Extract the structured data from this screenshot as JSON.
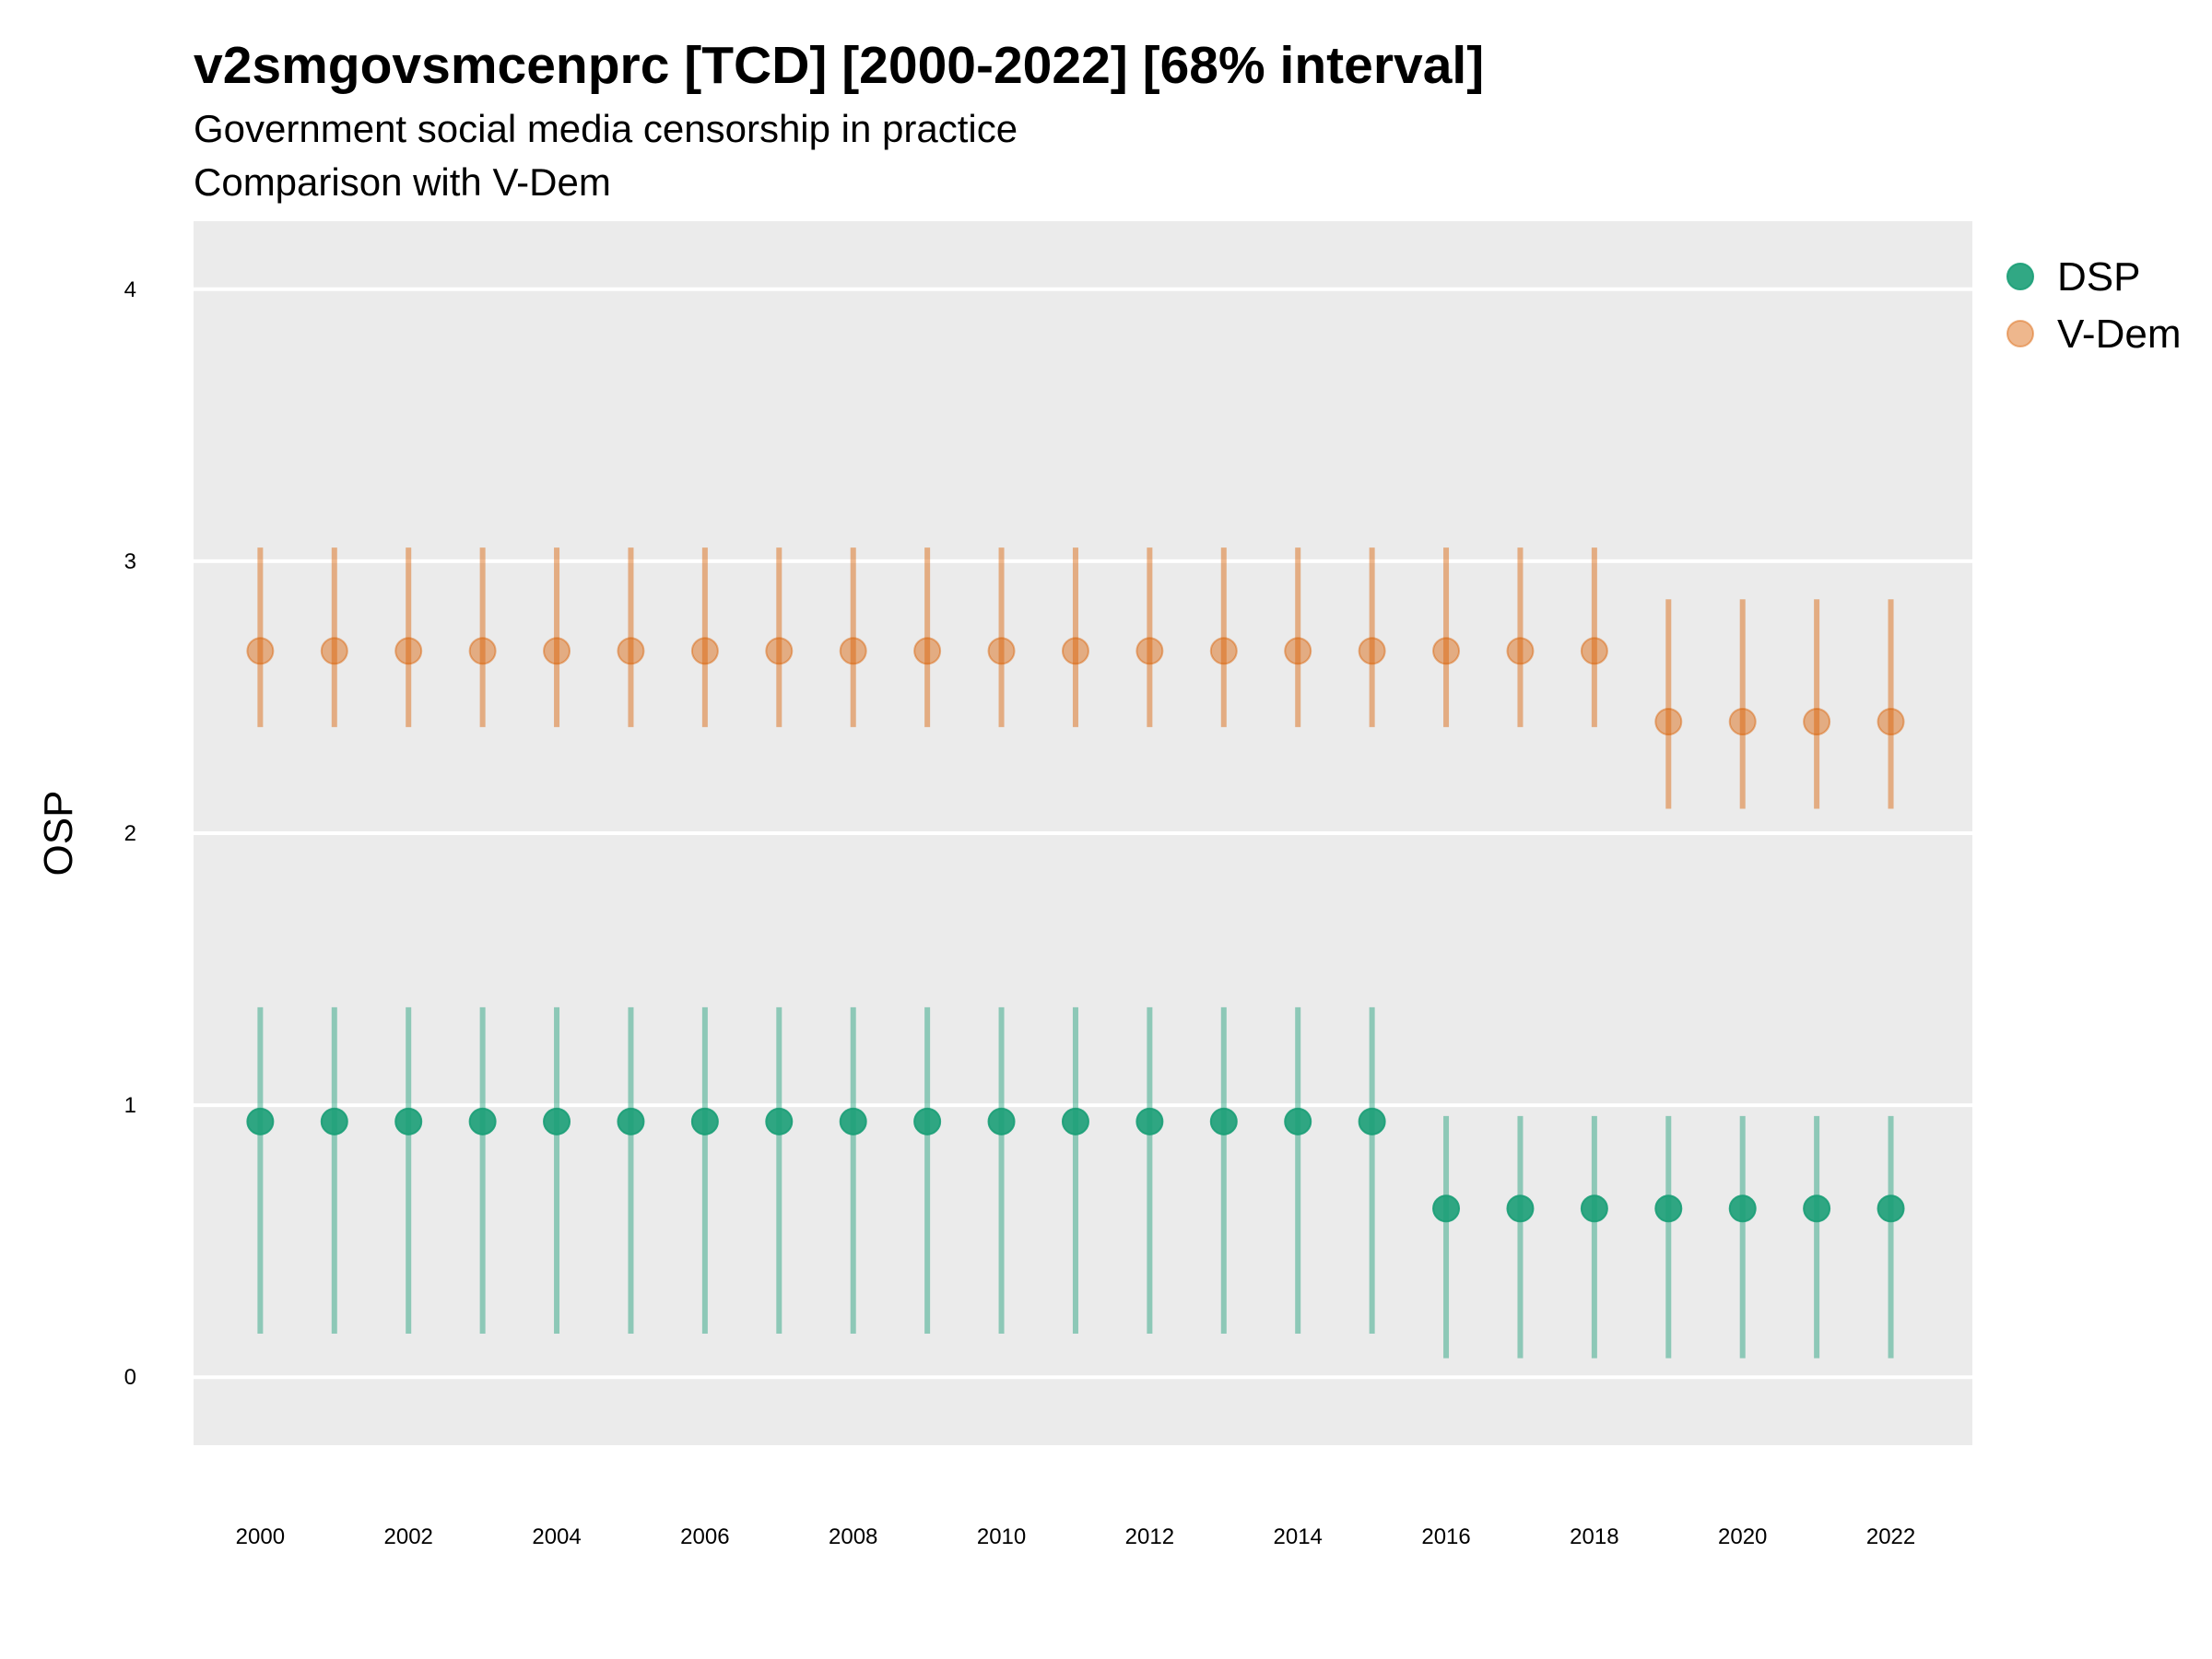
{
  "chart_data": {
    "type": "scatter",
    "title": "v2smgovsmcenprc [TCD] [2000-2022] [68% interval]",
    "subtitle": "Government social media censorship in practice",
    "caption": "Comparison with V-Dem",
    "xlabel": "",
    "ylabel": "OSP",
    "x": [
      2000,
      2001,
      2002,
      2003,
      2004,
      2005,
      2006,
      2007,
      2008,
      2009,
      2010,
      2011,
      2012,
      2013,
      2014,
      2015,
      2016,
      2017,
      2018,
      2019,
      2020,
      2021,
      2022
    ],
    "x_ticks": [
      2000,
      2002,
      2004,
      2006,
      2008,
      2010,
      2012,
      2014,
      2016,
      2018,
      2020,
      2022
    ],
    "y_ticks": [
      0,
      1,
      2,
      3,
      4
    ],
    "ylim": [
      -0.25,
      4.25
    ],
    "xlim": [
      1999.1,
      2023.1
    ],
    "grid": true,
    "legend_position": "right",
    "series": [
      {
        "name": "DSP",
        "color": "#1b9e77",
        "values": [
          0.94,
          0.94,
          0.94,
          0.94,
          0.94,
          0.94,
          0.94,
          0.94,
          0.94,
          0.94,
          0.94,
          0.94,
          0.94,
          0.94,
          0.94,
          0.94,
          0.62,
          0.62,
          0.62,
          0.62,
          0.62,
          0.62,
          0.62
        ],
        "lower": [
          0.16,
          0.16,
          0.16,
          0.16,
          0.16,
          0.16,
          0.16,
          0.16,
          0.16,
          0.16,
          0.16,
          0.16,
          0.16,
          0.16,
          0.16,
          0.16,
          0.07,
          0.07,
          0.07,
          0.07,
          0.07,
          0.07,
          0.07
        ],
        "upper": [
          1.36,
          1.36,
          1.36,
          1.36,
          1.36,
          1.36,
          1.36,
          1.36,
          1.36,
          1.36,
          1.36,
          1.36,
          1.36,
          1.36,
          1.36,
          1.36,
          0.96,
          0.96,
          0.96,
          0.96,
          0.96,
          0.96,
          0.96
        ]
      },
      {
        "name": "V-Dem",
        "color": "#d95f02",
        "values": [
          2.67,
          2.67,
          2.67,
          2.67,
          2.67,
          2.67,
          2.67,
          2.67,
          2.67,
          2.67,
          2.67,
          2.67,
          2.67,
          2.67,
          2.67,
          2.67,
          2.67,
          2.67,
          2.67,
          2.41,
          2.41,
          2.41,
          2.41
        ],
        "lower": [
          2.39,
          2.39,
          2.39,
          2.39,
          2.39,
          2.39,
          2.39,
          2.39,
          2.39,
          2.39,
          2.39,
          2.39,
          2.39,
          2.39,
          2.39,
          2.39,
          2.39,
          2.39,
          2.39,
          2.09,
          2.09,
          2.09,
          2.09
        ],
        "upper": [
          3.05,
          3.05,
          3.05,
          3.05,
          3.05,
          3.05,
          3.05,
          3.05,
          3.05,
          3.05,
          3.05,
          3.05,
          3.05,
          3.05,
          3.05,
          3.05,
          3.05,
          3.05,
          3.05,
          2.86,
          2.86,
          2.86,
          2.86
        ]
      }
    ]
  }
}
